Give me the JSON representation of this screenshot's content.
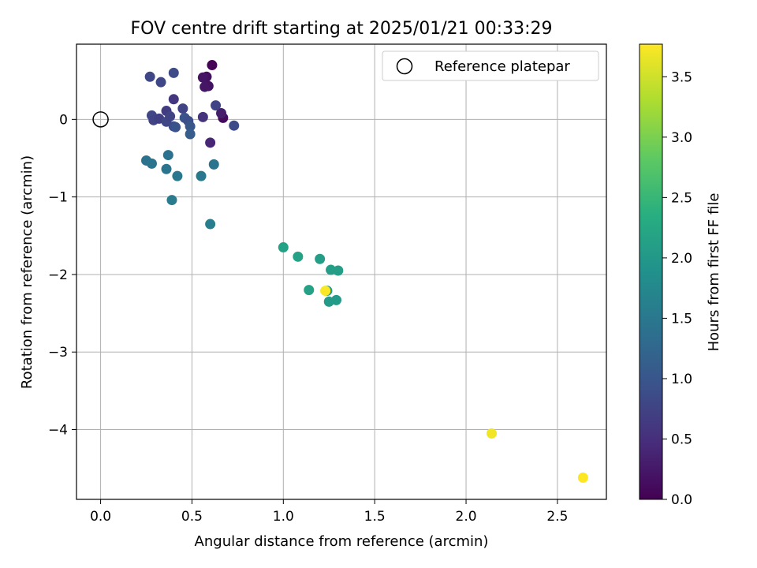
{
  "chart_data": {
    "type": "scatter",
    "title": "FOV centre drift starting at 2025/01/21 00:33:29",
    "xlabel": "Angular distance from reference (arcmin)",
    "ylabel": "Rotation from reference (arcmin)",
    "xlim": [
      -0.132,
      2.768
    ],
    "ylim": [
      -4.9,
      0.97
    ],
    "xticks": [
      0.0,
      0.5,
      1.0,
      1.5,
      2.0,
      2.5
    ],
    "xtick_labels": [
      "0.0",
      "0.5",
      "1.0",
      "1.5",
      "2.0",
      "2.5"
    ],
    "yticks": [
      0,
      -1,
      -2,
      -3,
      -4
    ],
    "ytick_labels": [
      "0",
      "−1",
      "−2",
      "−3",
      "−4"
    ],
    "grid": true,
    "legend": {
      "label": "Reference platepar",
      "placement": "upper right"
    },
    "reference_point": {
      "x": 0.0,
      "y": 0.0
    },
    "colorbar": {
      "label": "Hours from first FF file",
      "colormap": "viridis",
      "range": [
        0.0,
        3.77
      ],
      "ticks": [
        0.0,
        0.5,
        1.0,
        1.5,
        2.0,
        2.5,
        3.0,
        3.5
      ],
      "tick_labels": [
        "0.0",
        "0.5",
        "1.0",
        "1.5",
        "2.0",
        "2.5",
        "3.0",
        "3.5"
      ]
    },
    "series": [
      {
        "points": [
          {
            "x": 0.61,
            "y": 0.7,
            "hours": 0.02
          },
          {
            "x": 0.58,
            "y": 0.55,
            "hours": 0.15
          },
          {
            "x": 0.56,
            "y": 0.54,
            "hours": 0.2
          },
          {
            "x": 0.59,
            "y": 0.43,
            "hours": 0.18
          },
          {
            "x": 0.57,
            "y": 0.42,
            "hours": 0.22
          },
          {
            "x": 0.67,
            "y": 0.02,
            "hours": 0.1
          },
          {
            "x": 0.66,
            "y": 0.08,
            "hours": 0.3
          },
          {
            "x": 0.6,
            "y": -0.3,
            "hours": 0.4
          },
          {
            "x": 0.56,
            "y": 0.03,
            "hours": 0.55
          },
          {
            "x": 0.63,
            "y": 0.18,
            "hours": 0.75
          },
          {
            "x": 0.73,
            "y": -0.08,
            "hours": 0.85
          },
          {
            "x": 0.27,
            "y": 0.55,
            "hours": 0.8
          },
          {
            "x": 0.33,
            "y": 0.48,
            "hours": 0.8
          },
          {
            "x": 0.4,
            "y": 0.6,
            "hours": 0.85
          },
          {
            "x": 0.4,
            "y": 0.26,
            "hours": 0.6
          },
          {
            "x": 0.45,
            "y": 0.14,
            "hours": 0.75
          },
          {
            "x": 0.36,
            "y": 0.11,
            "hours": 0.65
          },
          {
            "x": 0.28,
            "y": 0.05,
            "hours": 0.8
          },
          {
            "x": 0.29,
            "y": -0.01,
            "hours": 0.75
          },
          {
            "x": 0.32,
            "y": 0.01,
            "hours": 0.7
          },
          {
            "x": 0.36,
            "y": -0.03,
            "hours": 0.8
          },
          {
            "x": 0.38,
            "y": 0.04,
            "hours": 0.75
          },
          {
            "x": 0.4,
            "y": -0.09,
            "hours": 0.85
          },
          {
            "x": 0.46,
            "y": 0.02,
            "hours": 0.95
          },
          {
            "x": 0.48,
            "y": -0.02,
            "hours": 0.9
          },
          {
            "x": 0.49,
            "y": -0.09,
            "hours": 1.0
          },
          {
            "x": 0.49,
            "y": -0.19,
            "hours": 1.1
          },
          {
            "x": 0.41,
            "y": -0.1,
            "hours": 0.95
          },
          {
            "x": 0.37,
            "y": -0.46,
            "hours": 1.4
          },
          {
            "x": 0.25,
            "y": -0.53,
            "hours": 1.4
          },
          {
            "x": 0.28,
            "y": -0.57,
            "hours": 1.45
          },
          {
            "x": 0.36,
            "y": -0.64,
            "hours": 1.45
          },
          {
            "x": 0.42,
            "y": -0.73,
            "hours": 1.5
          },
          {
            "x": 0.55,
            "y": -0.73,
            "hours": 1.5
          },
          {
            "x": 0.62,
            "y": -0.58,
            "hours": 1.45
          },
          {
            "x": 0.39,
            "y": -1.04,
            "hours": 1.55
          },
          {
            "x": 0.6,
            "y": -1.35,
            "hours": 1.6
          },
          {
            "x": 1.0,
            "y": -1.65,
            "hours": 2.15
          },
          {
            "x": 1.08,
            "y": -1.77,
            "hours": 2.15
          },
          {
            "x": 1.2,
            "y": -1.8,
            "hours": 2.1
          },
          {
            "x": 1.26,
            "y": -1.94,
            "hours": 2.1
          },
          {
            "x": 1.3,
            "y": -1.95,
            "hours": 2.1
          },
          {
            "x": 1.14,
            "y": -2.2,
            "hours": 2.15
          },
          {
            "x": 1.24,
            "y": -2.21,
            "hours": 2.05
          },
          {
            "x": 1.25,
            "y": -2.35,
            "hours": 2.05
          },
          {
            "x": 1.29,
            "y": -2.33,
            "hours": 2.05
          },
          {
            "x": 1.23,
            "y": -2.21,
            "hours": 3.75
          },
          {
            "x": 2.14,
            "y": -4.05,
            "hours": 3.7
          },
          {
            "x": 2.64,
            "y": -4.62,
            "hours": 3.77
          }
        ]
      }
    ]
  }
}
